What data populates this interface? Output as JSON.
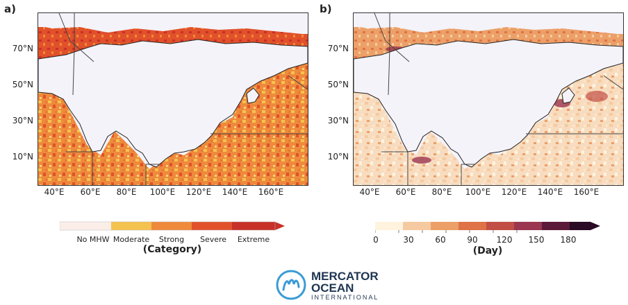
{
  "panels": [
    {
      "label": "a)",
      "colorbar_title": "(Category)",
      "colorbar_labels": [
        "No MHW",
        "Moderate",
        "Strong",
        "Severe",
        "Extreme"
      ],
      "colors": [
        "#fbeee8",
        "#f4c24f",
        "#ef8a3a",
        "#e1512a",
        "#c8302a"
      ]
    },
    {
      "label": "b)",
      "colorbar_title": "(Day)",
      "colorbar_ticks": [
        "0",
        "30",
        "60",
        "90",
        "120",
        "150",
        "180"
      ],
      "colors": [
        "#fff3de",
        "#f6caa0",
        "#eca067",
        "#df7247",
        "#c24f45",
        "#9b3650",
        "#5c1a3b",
        "#2a0a25"
      ]
    }
  ],
  "lat_labels": [
    "70°N",
    "50°N",
    "30°N",
    "10°N"
  ],
  "lon_labels": [
    "40°E",
    "60°E",
    "80°E",
    "100°E",
    "120°E",
    "140°E",
    "160°E"
  ],
  "logo": {
    "line1": "MERCATOR",
    "line2": "OCEAN",
    "line3": "INTERNATIONAL",
    "accent": "#3a9bd5"
  }
}
